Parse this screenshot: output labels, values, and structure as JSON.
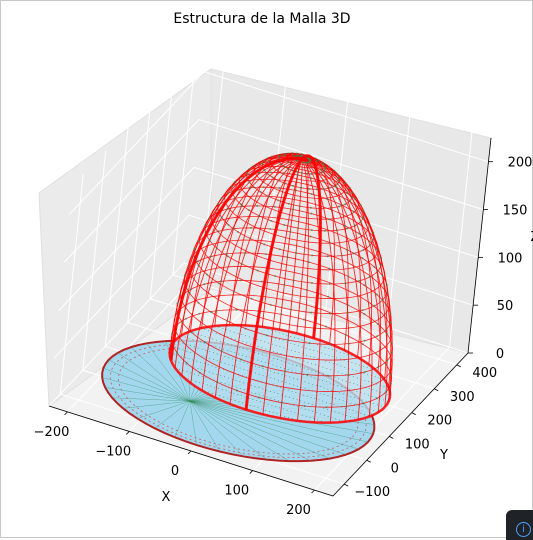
{
  "chart_data": {
    "type": "3d-wireframe",
    "title": "Estructura de la Malla 3D",
    "xlabel": "X",
    "ylabel": "Y",
    "zlabel": "Z",
    "xticks": [
      "−200",
      "−100",
      "0",
      "100",
      "200"
    ],
    "yticks": [
      "−100",
      "0",
      "100",
      "200",
      "300",
      "400"
    ],
    "zticks": [
      "0",
      "50",
      "100",
      "150",
      "200"
    ],
    "xlim": [
      -230,
      230
    ],
    "ylim": [
      -150,
      450
    ],
    "zlim": [
      0,
      230
    ],
    "grid": true,
    "series": [
      {
        "role": "base mesh",
        "color": "#87ceeb",
        "edge_color": "#2e8b57",
        "z": 0
      },
      {
        "role": "dome mesh",
        "color": "#ff0000",
        "edge_color": "#2e8b57",
        "z_range": [
          0,
          225
        ]
      }
    ]
  },
  "corner_widget": {
    "icon": "info-icon",
    "glyph": "i"
  }
}
